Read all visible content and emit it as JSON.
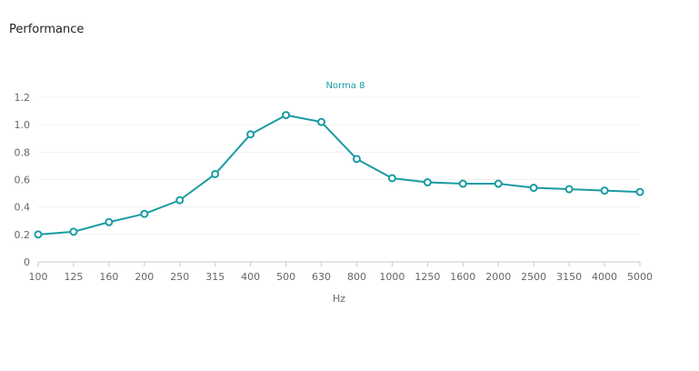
{
  "page": {
    "title": "Performance"
  },
  "chart_data": {
    "type": "line",
    "title": "",
    "xlabel": "Hz",
    "ylabel": "",
    "categories": [
      "100",
      "125",
      "160",
      "200",
      "250",
      "315",
      "400",
      "500",
      "630",
      "800",
      "1000",
      "1250",
      "1600",
      "2000",
      "2500",
      "3150",
      "4000",
      "5000"
    ],
    "series": [
      {
        "name": "Norma 8",
        "color": "#1a9ba3",
        "values": [
          0.2,
          0.22,
          0.29,
          0.35,
          0.45,
          0.64,
          0.93,
          1.07,
          1.02,
          0.75,
          0.61,
          0.58,
          0.57,
          0.57,
          0.54,
          0.53,
          0.52,
          0.51
        ]
      }
    ],
    "ylim": [
      0,
      1.2
    ],
    "yticks": [
      0,
      0.2,
      0.4,
      0.6,
      0.8,
      1.0,
      1.2
    ],
    "ytick_labels": [
      "0",
      "0.2",
      "0.4",
      "0.6",
      "0.8",
      "1.0",
      "1.2"
    ],
    "grid": true,
    "legend": "top-center"
  }
}
